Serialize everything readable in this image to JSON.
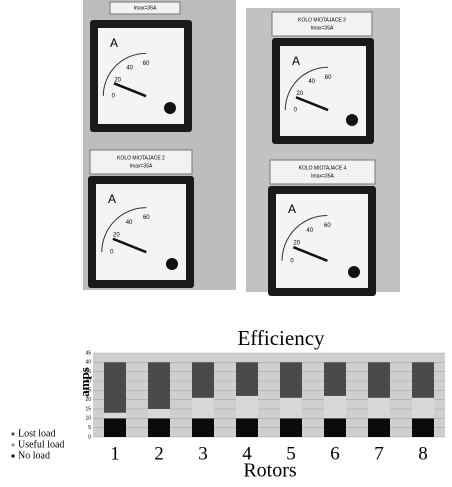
{
  "photos": [
    {
      "plate": [
        "Imax=35A"
      ]
    },
    {
      "plate": [
        "KOLO MIOTAJACE 2",
        "Imax=35A"
      ]
    },
    {
      "plate": [
        "KOLO MIOTAJACE 3",
        "Imax=35A"
      ]
    },
    {
      "plate": [
        "KOLO MIOTAJACE 4",
        "Imax=35A"
      ]
    }
  ],
  "meter_unit": "A",
  "meter_scale": [
    "0",
    "20",
    "40",
    "60"
  ],
  "chart_data": {
    "type": "bar",
    "stacked": true,
    "title": "Efficiency",
    "x_label": "Rotors",
    "y_label": "amps",
    "categories": [
      "1",
      "2",
      "3",
      "4",
      "5",
      "6",
      "7",
      "8"
    ],
    "series": [
      {
        "name": "No load",
        "color": "#0a0a0a",
        "values": [
          10,
          10,
          10,
          10,
          10,
          10,
          10,
          10
        ]
      },
      {
        "name": "Useful load",
        "color": "#d8d8d8",
        "values": [
          3,
          5,
          11,
          12,
          11,
          12,
          11,
          11
        ]
      },
      {
        "name": "Lost load",
        "color": "#4a4a4a",
        "values": [
          27,
          25,
          19,
          18,
          19,
          18,
          19,
          19
        ]
      }
    ],
    "ylim": [
      0,
      45
    ],
    "yticks": [
      0,
      5,
      10,
      15,
      20,
      25,
      30,
      35,
      40,
      45
    ],
    "grid": true
  }
}
